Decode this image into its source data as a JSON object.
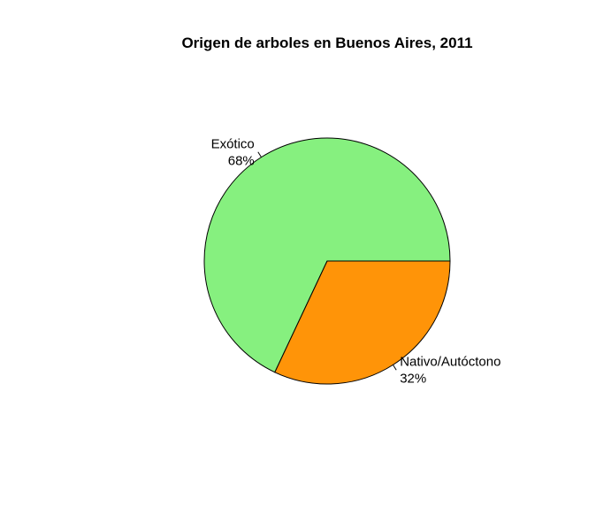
{
  "chart_data": {
    "type": "pie",
    "title": "Origen de arboles en Buenos Aires, 2011",
    "slices": [
      {
        "label": "Exótico",
        "percent_label": "68%",
        "value": 68,
        "color": "#86F07F"
      },
      {
        "label": "Nativo/Autóctono",
        "percent_label": "32%",
        "value": 32,
        "color": "#FF9408"
      }
    ],
    "start_angle_deg": 0,
    "direction": "counterclockwise",
    "legend": "none"
  }
}
